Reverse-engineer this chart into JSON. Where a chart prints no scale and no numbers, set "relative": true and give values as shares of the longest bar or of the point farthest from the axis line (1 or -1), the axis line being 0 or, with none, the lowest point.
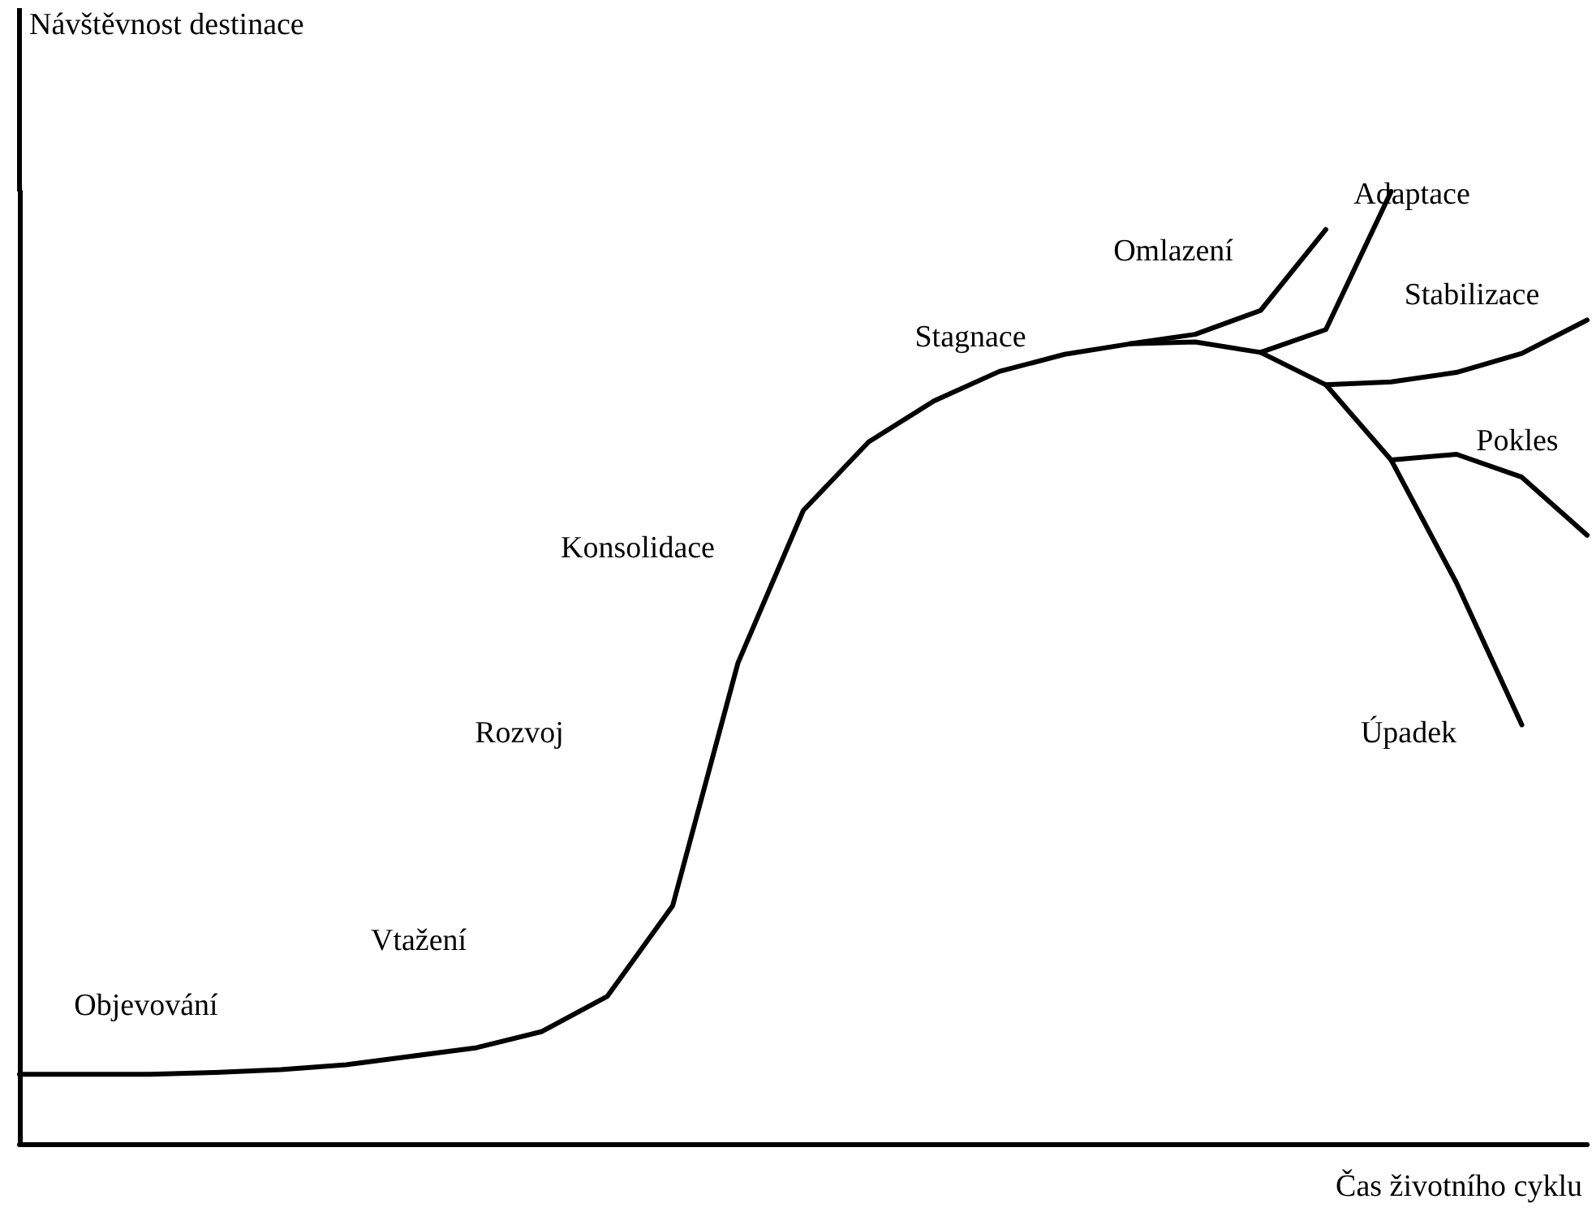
{
  "chart_data": {
    "type": "line",
    "relative": true,
    "xlabel": "Čas životního cyklu",
    "ylabel": "Návštěvnost destinace",
    "marker": "none",
    "line_style": "solid",
    "categories": [
      null,
      null,
      null,
      null,
      null,
      null,
      null,
      null,
      null,
      null,
      null,
      null,
      null,
      null,
      null,
      null,
      null,
      null,
      null,
      null,
      null,
      null,
      null,
      null,
      null
    ],
    "series": [
      {
        "color": "#000000",
        "values": [
          0.073,
          0.073,
          0.073,
          0.075,
          0.078,
          0.083,
          0.092,
          0.101,
          0.118,
          0.155,
          0.25,
          0.505,
          0.665,
          0.737,
          0.78,
          0.811,
          0.829,
          0.84,
          0.842,
          0.831,
          0.797,
          0.718,
          0.589,
          0.44,
          null
        ]
      },
      {
        "color": "#000000",
        "values": [
          null,
          null,
          null,
          null,
          null,
          null,
          null,
          null,
          null,
          null,
          null,
          null,
          null,
          null,
          null,
          null,
          null,
          0.84,
          0.85,
          0.875,
          0.96,
          null,
          null,
          null,
          null
        ]
      },
      {
        "color": "#000000",
        "values": [
          null,
          null,
          null,
          null,
          null,
          null,
          null,
          null,
          null,
          null,
          null,
          null,
          null,
          null,
          null,
          null,
          null,
          null,
          null,
          0.831,
          0.855,
          1.0,
          null,
          null,
          null
        ]
      },
      {
        "color": "#000000",
        "values": [
          null,
          null,
          null,
          null,
          null,
          null,
          null,
          null,
          null,
          null,
          null,
          null,
          null,
          null,
          null,
          null,
          null,
          null,
          null,
          null,
          0.797,
          0.8,
          0.81,
          0.83,
          0.865
        ]
      },
      {
        "color": "#000000",
        "values": [
          null,
          null,
          null,
          null,
          null,
          null,
          null,
          null,
          null,
          null,
          null,
          null,
          null,
          null,
          null,
          null,
          null,
          null,
          null,
          null,
          null,
          0.718,
          0.724,
          0.7,
          0.639
        ]
      }
    ],
    "annotations": [
      "Objevování",
      "Vtažení",
      "Rozvoj",
      "Konsolidace",
      "Stagnace",
      "Omlazení",
      "Adaptace",
      "Stabilizace",
      "Pokles",
      "Úpadek"
    ]
  }
}
